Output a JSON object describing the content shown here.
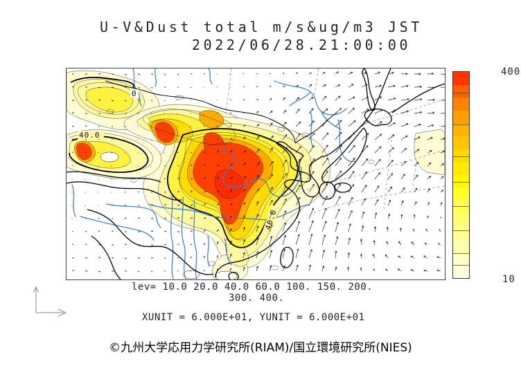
{
  "title": {
    "line1": "U-V&Dust total m/s&ug/m3 JST",
    "line2": "2022/06/28.21:00:00"
  },
  "colorbar": {
    "max_label": "400",
    "min_label": "10",
    "stops_bottom_to_top": [
      "#FFFFDC",
      "#FFFFC6",
      "#FFFFAE",
      "#FFFF92",
      "#FFFF74",
      "#FFFF52",
      "#FFFF2C",
      "#FFF800",
      "#FFE900",
      "#FFD800",
      "#FFC600",
      "#FFB300",
      "#FF9E00",
      "#FF8300",
      "#FF5F00",
      "#FF3400"
    ],
    "divider_fractions_from_top": [
      0.1,
      0.254,
      0.411,
      0.535,
      0.652,
      0.769,
      0.88,
      0.936
    ]
  },
  "legend": {
    "lev_line1": "lev= 10.0 20.0 40.0 60.0 100. 150. 200.",
    "lev_line2": "300. 400.",
    "levels": [
      10,
      20,
      40,
      60,
      100,
      150,
      200,
      300,
      400
    ],
    "units_line": "XUNIT = 6.000E+01, YUNIT = 6.000E+01"
  },
  "map": {
    "contour_labels": [
      {
        "text": "40.0"
      },
      {
        "text": "40.0"
      },
      {
        "text": "0"
      }
    ],
    "colors": {
      "pale": "#FFFBD2",
      "light": "#FFF89E",
      "yellow": "#FFF23C",
      "deep": "#FFDC00",
      "orange": "#FFAC00",
      "red": "#FF4000",
      "deepred": "#FF2A00",
      "river": "#2E7CE0",
      "coast": "#000000",
      "graticule": "#999999",
      "arrow": "#222222"
    }
  },
  "footer": {
    "copyright": "©九州大学応用力学研究所(RIAM)/国立環境研究所(NIES)"
  }
}
